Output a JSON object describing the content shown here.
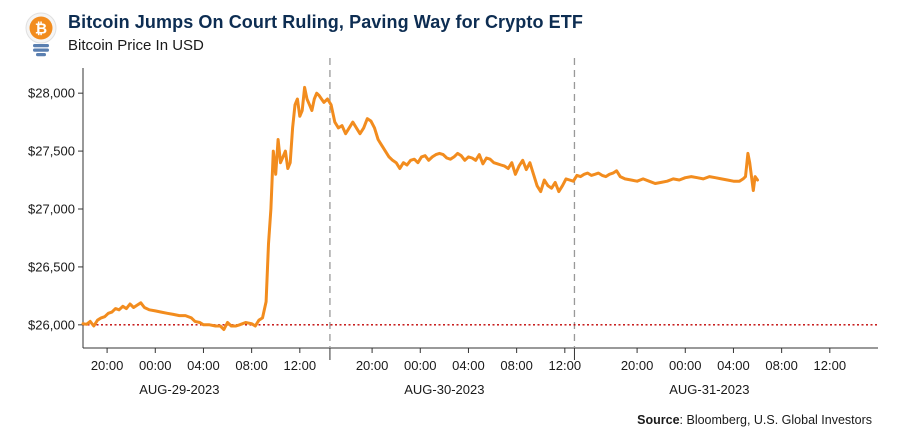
{
  "header": {
    "title": "Bitcoin Jumps On Court Ruling, Paving Way for Crypto ETF",
    "subtitle": "Bitcoin Price In USD"
  },
  "source": {
    "label": "Source",
    "text": ": Bloomberg, U.S. Global Investors"
  },
  "colors": {
    "line": "#f28c1e",
    "reference": "#c00000",
    "title": "#0d2d52",
    "axis": "#333333",
    "divider": "#999999",
    "logo_bulb": "#f28c1e",
    "logo_base": "#5a7fb0"
  },
  "icon": "lightbulb-bitcoin-icon",
  "chart_data": {
    "type": "line",
    "title": "Bitcoin Jumps On Court Ruling, Paving Way for Crypto ETF",
    "subtitle": "Bitcoin Price In USD",
    "xlabel": "",
    "ylabel": "",
    "ylim": [
      25800,
      28200
    ],
    "yticks": [
      26000,
      26500,
      27000,
      27500,
      28000
    ],
    "ytick_labels": [
      "$26,000",
      "$26,500",
      "$27,000",
      "$27,500",
      "$28,000"
    ],
    "xlim_hours": [
      0,
      66
    ],
    "xticks": [
      {
        "hour": 2,
        "label": "20:00"
      },
      {
        "hour": 6,
        "label": "00:00"
      },
      {
        "hour": 10,
        "label": "04:00"
      },
      {
        "hour": 14,
        "label": "08:00"
      },
      {
        "hour": 18,
        "label": "12:00"
      },
      {
        "hour": 24,
        "label": "20:00"
      },
      {
        "hour": 28,
        "label": "00:00"
      },
      {
        "hour": 32,
        "label": "04:00"
      },
      {
        "hour": 36,
        "label": "08:00"
      },
      {
        "hour": 40,
        "label": "12:00"
      },
      {
        "hour": 46,
        "label": "20:00"
      },
      {
        "hour": 50,
        "label": "00:00"
      },
      {
        "hour": 54,
        "label": "04:00"
      },
      {
        "hour": 58,
        "label": "08:00"
      },
      {
        "hour": 62,
        "label": "12:00"
      }
    ],
    "date_labels": [
      {
        "hour": 8,
        "label": "AUG-29-2023"
      },
      {
        "hour": 30,
        "label": "AUG-30-2023"
      },
      {
        "hour": 52,
        "label": "AUG-31-2023"
      }
    ],
    "day_dividers_hours": [
      20.5,
      40.8
    ],
    "reference_line": {
      "value": 26000,
      "style": "dotted"
    },
    "series": [
      {
        "values": [
          [
            0.0,
            26010
          ],
          [
            0.3,
            26005
          ],
          [
            0.6,
            26030
          ],
          [
            0.9,
            25990
          ],
          [
            1.2,
            26040
          ],
          [
            1.5,
            26060
          ],
          [
            1.8,
            26070
          ],
          [
            2.1,
            26100
          ],
          [
            2.4,
            26110
          ],
          [
            2.7,
            26140
          ],
          [
            3.0,
            26130
          ],
          [
            3.3,
            26160
          ],
          [
            3.6,
            26140
          ],
          [
            3.9,
            26180
          ],
          [
            4.2,
            26150
          ],
          [
            4.5,
            26170
          ],
          [
            4.8,
            26190
          ],
          [
            5.1,
            26150
          ],
          [
            5.5,
            26130
          ],
          [
            6.0,
            26120
          ],
          [
            6.5,
            26110
          ],
          [
            7.0,
            26100
          ],
          [
            7.5,
            26090
          ],
          [
            8.0,
            26080
          ],
          [
            8.5,
            26080
          ],
          [
            9.0,
            26060
          ],
          [
            9.3,
            26030
          ],
          [
            9.7,
            26020
          ],
          [
            10.0,
            26000
          ],
          [
            10.5,
            26000
          ],
          [
            11.0,
            25990
          ],
          [
            11.4,
            25990
          ],
          [
            11.7,
            25960
          ],
          [
            12.0,
            26020
          ],
          [
            12.3,
            25990
          ],
          [
            12.7,
            25990
          ],
          [
            13.0,
            26000
          ],
          [
            13.5,
            26020
          ],
          [
            14.0,
            26010
          ],
          [
            14.3,
            25990
          ],
          [
            14.6,
            26040
          ],
          [
            14.9,
            26060
          ],
          [
            15.2,
            26200
          ],
          [
            15.4,
            26700
          ],
          [
            15.6,
            27000
          ],
          [
            15.8,
            27500
          ],
          [
            16.0,
            27300
          ],
          [
            16.2,
            27600
          ],
          [
            16.4,
            27400
          ],
          [
            16.6,
            27450
          ],
          [
            16.8,
            27500
          ],
          [
            17.0,
            27350
          ],
          [
            17.2,
            27400
          ],
          [
            17.4,
            27700
          ],
          [
            17.6,
            27900
          ],
          [
            17.8,
            27950
          ],
          [
            18.0,
            27800
          ],
          [
            18.2,
            27850
          ],
          [
            18.4,
            28050
          ],
          [
            18.6,
            27950
          ],
          [
            18.8,
            27900
          ],
          [
            19.0,
            27850
          ],
          [
            19.2,
            27950
          ],
          [
            19.4,
            28000
          ],
          [
            19.6,
            27980
          ],
          [
            19.8,
            27950
          ],
          [
            20.0,
            27920
          ],
          [
            20.3,
            27950
          ],
          [
            20.6,
            27900
          ],
          [
            20.9,
            27750
          ],
          [
            21.2,
            27700
          ],
          [
            21.5,
            27720
          ],
          [
            21.8,
            27650
          ],
          [
            22.1,
            27700
          ],
          [
            22.4,
            27750
          ],
          [
            22.7,
            27700
          ],
          [
            23.0,
            27650
          ],
          [
            23.3,
            27700
          ],
          [
            23.6,
            27780
          ],
          [
            23.9,
            27760
          ],
          [
            24.2,
            27700
          ],
          [
            24.5,
            27600
          ],
          [
            24.8,
            27550
          ],
          [
            25.1,
            27500
          ],
          [
            25.4,
            27450
          ],
          [
            25.7,
            27420
          ],
          [
            26.0,
            27400
          ],
          [
            26.3,
            27350
          ],
          [
            26.6,
            27400
          ],
          [
            26.9,
            27380
          ],
          [
            27.2,
            27420
          ],
          [
            27.5,
            27430
          ],
          [
            27.8,
            27400
          ],
          [
            28.1,
            27450
          ],
          [
            28.4,
            27460
          ],
          [
            28.7,
            27420
          ],
          [
            29.0,
            27450
          ],
          [
            29.3,
            27470
          ],
          [
            29.6,
            27480
          ],
          [
            29.9,
            27470
          ],
          [
            30.2,
            27440
          ],
          [
            30.5,
            27430
          ],
          [
            30.8,
            27450
          ],
          [
            31.1,
            27480
          ],
          [
            31.4,
            27460
          ],
          [
            31.7,
            27420
          ],
          [
            32.0,
            27450
          ],
          [
            32.3,
            27440
          ],
          [
            32.6,
            27420
          ],
          [
            32.9,
            27470
          ],
          [
            33.2,
            27390
          ],
          [
            33.5,
            27440
          ],
          [
            33.8,
            27430
          ],
          [
            34.1,
            27400
          ],
          [
            34.4,
            27390
          ],
          [
            34.7,
            27380
          ],
          [
            35.0,
            27370
          ],
          [
            35.3,
            27350
          ],
          [
            35.6,
            27400
          ],
          [
            35.9,
            27300
          ],
          [
            36.2,
            27370
          ],
          [
            36.5,
            27420
          ],
          [
            36.8,
            27340
          ],
          [
            37.1,
            27400
          ],
          [
            37.4,
            27300
          ],
          [
            37.7,
            27200
          ],
          [
            38.0,
            27150
          ],
          [
            38.3,
            27250
          ],
          [
            38.6,
            27200
          ],
          [
            38.9,
            27180
          ],
          [
            39.2,
            27230
          ],
          [
            39.5,
            27150
          ],
          [
            39.8,
            27200
          ],
          [
            40.1,
            27260
          ],
          [
            40.4,
            27250
          ],
          [
            40.7,
            27240
          ],
          [
            41.0,
            27290
          ],
          [
            41.3,
            27280
          ],
          [
            41.6,
            27300
          ],
          [
            41.9,
            27310
          ],
          [
            42.2,
            27290
          ],
          [
            42.5,
            27300
          ],
          [
            42.8,
            27310
          ],
          [
            43.1,
            27290
          ],
          [
            43.4,
            27280
          ],
          [
            43.7,
            27300
          ],
          [
            44.0,
            27310
          ],
          [
            44.3,
            27330
          ],
          [
            44.6,
            27280
          ],
          [
            45.0,
            27260
          ],
          [
            45.5,
            27250
          ],
          [
            46.0,
            27240
          ],
          [
            46.5,
            27260
          ],
          [
            47.0,
            27240
          ],
          [
            47.5,
            27220
          ],
          [
            48.0,
            27230
          ],
          [
            48.5,
            27240
          ],
          [
            49.0,
            27260
          ],
          [
            49.5,
            27250
          ],
          [
            50.0,
            27270
          ],
          [
            50.5,
            27280
          ],
          [
            51.0,
            27270
          ],
          [
            51.5,
            27260
          ],
          [
            52.0,
            27280
          ],
          [
            52.5,
            27270
          ],
          [
            53.0,
            27260
          ],
          [
            53.5,
            27250
          ],
          [
            54.0,
            27240
          ],
          [
            54.5,
            27240
          ],
          [
            54.8,
            27260
          ],
          [
            55.0,
            27280
          ],
          [
            55.2,
            27480
          ],
          [
            55.35,
            27400
          ],
          [
            55.5,
            27280
          ],
          [
            55.65,
            27160
          ],
          [
            55.8,
            27280
          ],
          [
            56.0,
            27250
          ]
        ]
      }
    ]
  }
}
